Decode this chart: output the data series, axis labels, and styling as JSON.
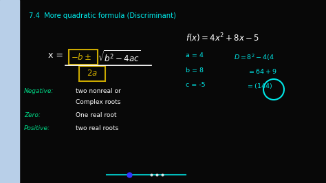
{
  "bg_color": "#080808",
  "left_bar_color": "#b8cfe8",
  "title_color": "#00e8e8",
  "formula_color": "#ffffff",
  "box_color": "#ccaa00",
  "green_color": "#00dd88",
  "cyan_color": "#00e8e8",
  "title": "7.4  More quadratic formula (Discriminant)",
  "neg_label": "Negative:",
  "neg_text1": "two nonreal or",
  "neg_text2": "Complex roots",
  "zero_label": "Zero:",
  "zero_text": "One real root",
  "pos_label": "Positive:",
  "pos_text": "two real roots",
  "bottom_bar_color": "#00cccc",
  "dot_color": "#3333ff"
}
